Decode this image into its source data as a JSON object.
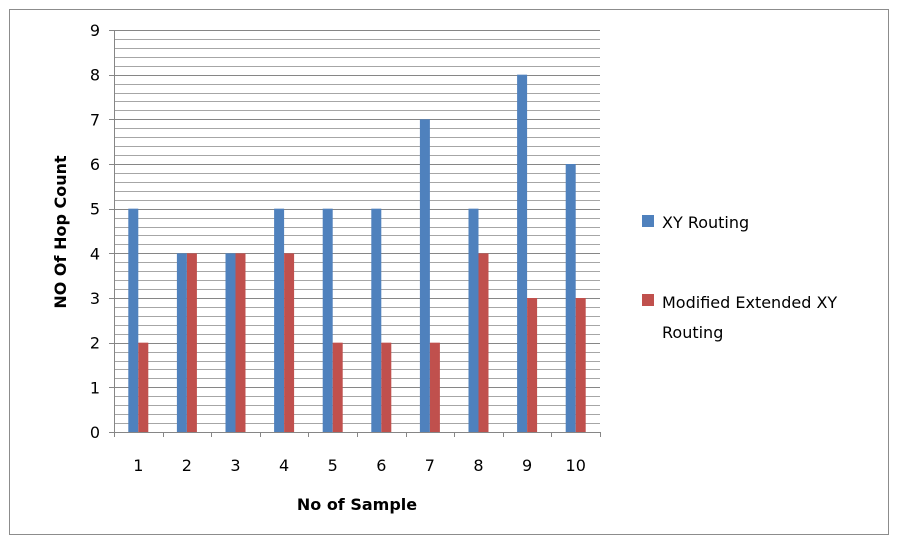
{
  "chart_data": {
    "type": "bar",
    "categories": [
      "1",
      "2",
      "3",
      "4",
      "5",
      "6",
      "7",
      "8",
      "9",
      "10"
    ],
    "series": [
      {
        "name": "XY Routing",
        "color": "#4f81bd",
        "values": [
          5,
          4,
          4,
          5,
          5,
          5,
          7,
          5,
          8,
          6
        ]
      },
      {
        "name": "Modified Extended XY Routing",
        "color": "#c0504d",
        "values": [
          2,
          4,
          4,
          4,
          2,
          2,
          2,
          4,
          3,
          3
        ]
      }
    ],
    "xlabel": "No of Sample",
    "ylabel": "NO Of Hop Count",
    "ylim": [
      0,
      9
    ],
    "y_ticks": [
      "0",
      "1",
      "2",
      "3",
      "4",
      "5",
      "6",
      "7",
      "8",
      "9"
    ],
    "grid": true,
    "legend_position": "right",
    "legend_labels": {
      "series_0": "XY Routing",
      "series_1_line1": "Modified Extended XY",
      "series_1_line2": "Routing"
    }
  }
}
